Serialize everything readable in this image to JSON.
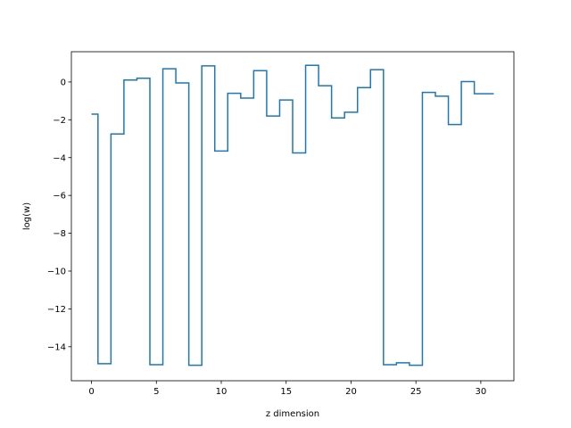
{
  "chart_data": {
    "type": "line",
    "drawstyle": "steps-mid",
    "title": "",
    "xlabel": "z dimension",
    "ylabel": "log(w)",
    "xlim": [
      -1.55,
      32.55
    ],
    "ylim": [
      -15.8,
      1.6
    ],
    "xticks": [
      0,
      5,
      10,
      15,
      20,
      25,
      30
    ],
    "yticks": [
      0,
      -2,
      -4,
      -6,
      -8,
      -10,
      -12,
      -14
    ],
    "grid": false,
    "legend": "none",
    "color": "#1f77b4",
    "series": [
      {
        "x": [
          0,
          1,
          2,
          3,
          4,
          5,
          6,
          7,
          8,
          9,
          10,
          11,
          12,
          13,
          14,
          15,
          16,
          17,
          18,
          19,
          20,
          21,
          22,
          23,
          24,
          25,
          26,
          27,
          28,
          29,
          30,
          31
        ],
        "values": [
          -1.7,
          -14.9,
          -2.75,
          0.1,
          0.2,
          -14.95,
          0.7,
          -0.05,
          -14.98,
          0.85,
          -3.65,
          -0.6,
          -0.85,
          0.6,
          -1.8,
          -0.95,
          -3.75,
          0.88,
          -0.2,
          -1.9,
          -1.6,
          -0.3,
          0.65,
          -14.95,
          -14.85,
          -14.98,
          -0.55,
          -0.75,
          -2.25,
          0.02,
          -0.62,
          -0.62
        ]
      }
    ]
  }
}
